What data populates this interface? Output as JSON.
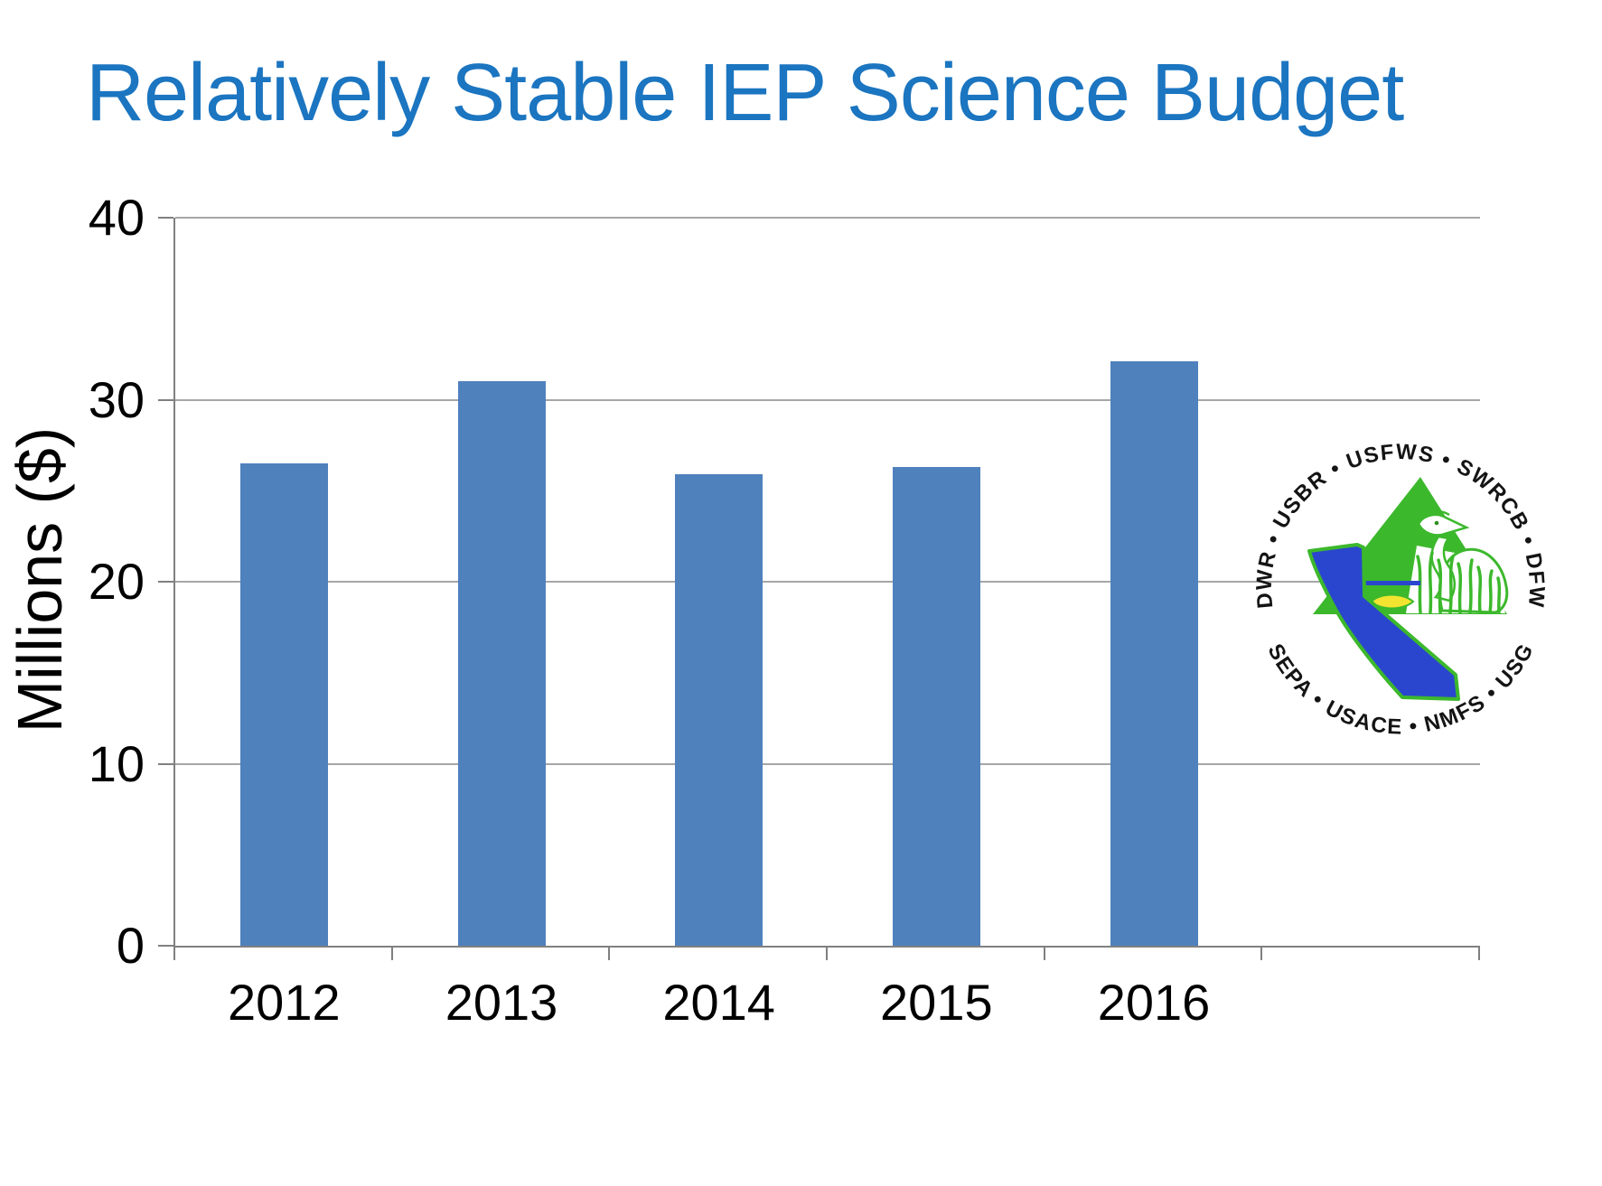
{
  "chart_data": {
    "type": "bar",
    "title": "Relatively Stable IEP Science Budget",
    "title_color": "#1B75C0",
    "categories": [
      "2012",
      "2013",
      "2014",
      "2015",
      "2016"
    ],
    "values": [
      26.5,
      31.0,
      25.9,
      26.3,
      32.1
    ],
    "xlabel": "",
    "ylabel": "Millions ($)",
    "ylim": [
      0,
      40
    ],
    "yticks": [
      0,
      10,
      20,
      30,
      40
    ],
    "extra_empty_category_slot": true,
    "grid": true,
    "legend": "none",
    "bar_color": "#4F81BD",
    "gridline_color": "#A6A6A6",
    "axis_color": "#808080",
    "text_color": "#000000"
  },
  "logo": {
    "top_arc_text": "DWR • USBR • USFWS • SWRCB • DFW",
    "bottom_arc_text": "USEPA • USACE • NMFS • USGS",
    "colors": {
      "green": "#3CB82C",
      "blue": "#2A46CE",
      "yellow": "#F2E430",
      "text": "#141414",
      "white": "#FFFFFF"
    }
  }
}
